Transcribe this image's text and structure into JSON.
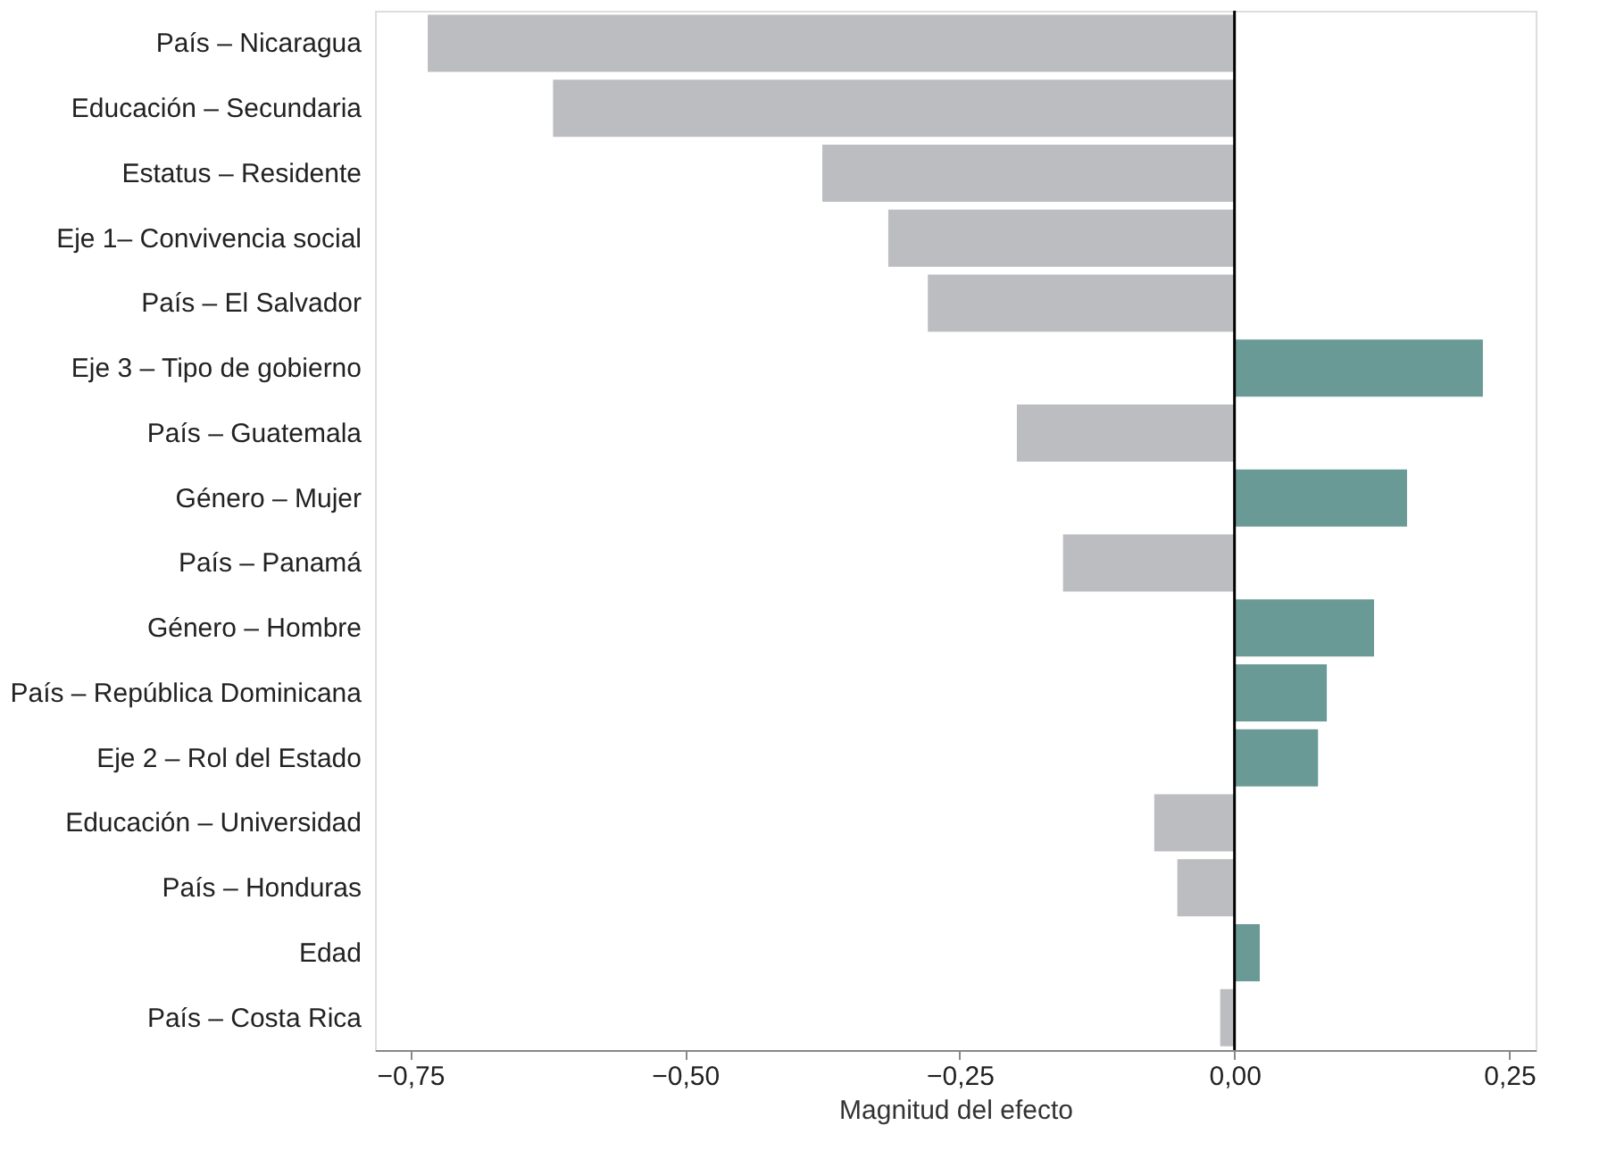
{
  "chart_data": {
    "type": "bar",
    "orientation": "horizontal",
    "xlabel": "Magnitud del efecto",
    "categories": [
      "País – Nicaragua",
      "Educación – Secundaria",
      "Estatus – Residente",
      "Eje 1– Convivencia social",
      "País – El Salvador",
      "Eje 3 – Tipo de gobierno",
      "País – Guatemala",
      "Género – Mujer",
      "País – Panamá",
      "Género – Hombre",
      "País – República Dominicana",
      "Eje 2 – Rol del Estado",
      "Educación – Universidad",
      "País – Honduras",
      "Edad",
      "País – Costa Rica"
    ],
    "values": [
      -0.734,
      -0.62,
      -0.375,
      -0.315,
      -0.279,
      0.226,
      -0.198,
      0.157,
      -0.156,
      0.127,
      0.084,
      0.076,
      -0.073,
      -0.052,
      0.023,
      -0.013
    ],
    "colors": [
      "#bcbdc1",
      "#bcbdc1",
      "#bcbdc1",
      "#bcbdc1",
      "#bcbdc1",
      "#6a9a96",
      "#bcbdc1",
      "#6a9a96",
      "#bcbdc1",
      "#6a9a96",
      "#6a9a96",
      "#6a9a96",
      "#bcbdc1",
      "#bcbdc1",
      "#6a9a96",
      "#bcbdc1"
    ],
    "xlim": [
      -0.782,
      0.274
    ],
    "xticks": [
      {
        "value": -0.75,
        "label": "−0,75"
      },
      {
        "value": -0.5,
        "label": "−0,50"
      },
      {
        "value": -0.25,
        "label": "−0,25"
      },
      {
        "value": 0,
        "label": "0,00"
      },
      {
        "value": 0.25,
        "label": "0,25"
      }
    ],
    "ref_lines": [
      {
        "axis": "x",
        "value": 0,
        "color": "#000000"
      }
    ],
    "grid": false,
    "legend": false
  }
}
